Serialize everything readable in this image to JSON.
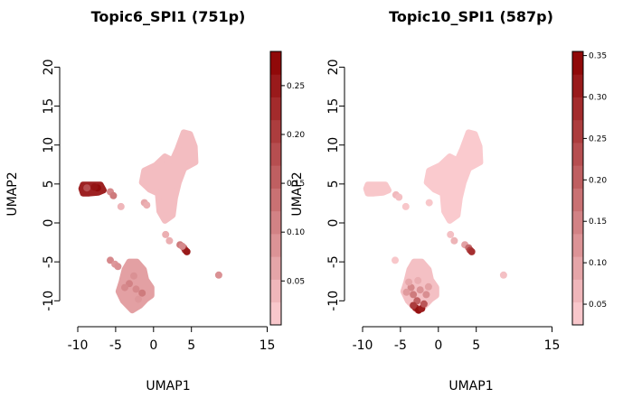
{
  "chart_data": [
    {
      "type": "scatter",
      "title": "Topic6_SPI1 (751p)",
      "xlabel": "UMAP1",
      "ylabel": "UMAP2",
      "xlim": [
        -10,
        15
      ],
      "ylim": [
        -10,
        20
      ],
      "xticks": [
        -10,
        -5,
        0,
        5,
        15
      ],
      "xtick_labels": [
        "-10",
        "-5",
        "0",
        "5",
        "15"
      ],
      "yticks": [
        -10,
        -5,
        0,
        5,
        10,
        15,
        20
      ],
      "ytick_labels": [
        "-10",
        "-5",
        "0",
        "5",
        "10",
        "15",
        "20"
      ],
      "colorbar": {
        "min": 0.005,
        "max": 0.285,
        "ticks": [
          0.05,
          0.1,
          0.15,
          0.2,
          0.25
        ],
        "tick_labels": [
          "0.05",
          "0.10",
          "0.15",
          "0.20",
          "0.25"
        ],
        "low_color": "#fdd0d4",
        "high_color": "#8b0000"
      },
      "clusters": [
        {
          "name": "upper-right",
          "mode": "fill",
          "value": 0.03,
          "poly": [
            [
              -1.5,
              5.2
            ],
            [
              -1.2,
              6.7
            ],
            [
              0.3,
              7.4
            ],
            [
              1.5,
              8.5
            ],
            [
              2.5,
              8.0
            ],
            [
              3.2,
              9.5
            ],
            [
              4.0,
              11.6
            ],
            [
              4.8,
              11.4
            ],
            [
              5.4,
              9.8
            ],
            [
              5.5,
              7.8
            ],
            [
              4.0,
              7.0
            ],
            [
              3.3,
              5.2
            ],
            [
              2.8,
              3.2
            ],
            [
              2.5,
              1.0
            ],
            [
              1.5,
              0.3
            ],
            [
              0.8,
              1.5
            ],
            [
              0.6,
              3.8
            ],
            [
              -0.5,
              4.3
            ]
          ]
        },
        {
          "name": "left-strip",
          "mode": "fill",
          "value": 0.24,
          "poly": [
            [
              -9.5,
              4.4
            ],
            [
              -9.3,
              4.9
            ],
            [
              -7.0,
              4.9
            ],
            [
              -6.6,
              4.2
            ],
            [
              -7.3,
              3.9
            ],
            [
              -8.5,
              3.8
            ],
            [
              -9.3,
              3.8
            ]
          ]
        },
        {
          "name": "lower-cluster",
          "mode": "fill",
          "value": 0.07,
          "poly": [
            [
              -4.2,
              -7.6
            ],
            [
              -4.6,
              -8.8
            ],
            [
              -4.0,
              -10.0
            ],
            [
              -2.8,
              -11.2
            ],
            [
              -1.8,
              -10.6
            ],
            [
              -1.0,
              -9.8
            ],
            [
              -0.3,
              -9.3
            ],
            [
              -0.3,
              -8.3
            ],
            [
              -1.0,
              -7.3
            ],
            [
              -1.3,
              -6.0
            ],
            [
              -2.2,
              -5.0
            ],
            [
              -3.2,
              -5.0
            ],
            [
              -3.8,
              -6.0
            ]
          ]
        },
        {
          "name": "lower-dark-spot",
          "mode": "none",
          "value": 0.09,
          "poly": []
        }
      ],
      "points": [
        [
          -7.4,
          4.5,
          0.27
        ],
        [
          -7.8,
          4.6,
          0.26
        ],
        [
          -8.8,
          4.5,
          0.18
        ],
        [
          -5.7,
          4.0,
          0.1
        ],
        [
          -5.3,
          3.5,
          0.12
        ],
        [
          -4.3,
          2.1,
          0.04
        ],
        [
          -1.2,
          2.6,
          0.06
        ],
        [
          -0.9,
          2.3,
          0.05
        ],
        [
          1.6,
          -1.5,
          0.05
        ],
        [
          2.1,
          -2.3,
          0.05
        ],
        [
          3.5,
          -2.8,
          0.12
        ],
        [
          4.0,
          -3.2,
          0.14
        ],
        [
          4.2,
          -3.5,
          0.22
        ],
        [
          4.4,
          -3.7,
          0.25
        ],
        [
          3.8,
          -3.0,
          0.1
        ],
        [
          -5.7,
          -4.8,
          0.1
        ],
        [
          -5.1,
          -5.3,
          0.08
        ],
        [
          -4.7,
          -5.6,
          0.09
        ],
        [
          8.6,
          -6.7,
          0.09
        ],
        [
          -3.2,
          -7.8,
          0.11
        ],
        [
          -2.3,
          -8.5,
          0.1
        ],
        [
          -1.5,
          -9.0,
          0.12
        ],
        [
          -3.8,
          -8.3,
          0.1
        ],
        [
          -2.6,
          -6.8,
          0.09
        ],
        [
          -2.0,
          -9.8,
          0.08
        ]
      ]
    },
    {
      "type": "scatter",
      "title": "Topic10_SPI1 (587p)",
      "xlabel": "UMAP1",
      "ylabel": "UMAP2",
      "xlim": [
        -10,
        15
      ],
      "ylim": [
        -10,
        20
      ],
      "xticks": [
        -10,
        -5,
        0,
        5,
        15
      ],
      "xtick_labels": [
        "-10",
        "-5",
        "0",
        "5",
        "15"
      ],
      "yticks": [
        -10,
        -5,
        0,
        5,
        10,
        15,
        20
      ],
      "ytick_labels": [
        "-10",
        "-5",
        "0",
        "5",
        "10",
        "15",
        "20"
      ],
      "colorbar": {
        "min": 0.025,
        "max": 0.355,
        "ticks": [
          0.05,
          0.1,
          0.15,
          0.2,
          0.25,
          0.3,
          0.35
        ],
        "tick_labels": [
          "0.05",
          "0.10",
          "0.15",
          "0.20",
          "0.25",
          "0.30",
          "0.35"
        ],
        "low_color": "#fdd0d4",
        "high_color": "#8b0000"
      },
      "clusters": [
        {
          "name": "upper-right",
          "mode": "fill",
          "value": 0.035,
          "poly": [
            [
              -1.5,
              5.2
            ],
            [
              -1.2,
              6.7
            ],
            [
              0.3,
              7.4
            ],
            [
              1.5,
              8.5
            ],
            [
              2.5,
              8.0
            ],
            [
              3.2,
              9.5
            ],
            [
              4.0,
              11.6
            ],
            [
              4.8,
              11.4
            ],
            [
              5.4,
              9.8
            ],
            [
              5.5,
              7.8
            ],
            [
              4.0,
              7.0
            ],
            [
              3.3,
              5.2
            ],
            [
              2.8,
              3.2
            ],
            [
              2.5,
              1.0
            ],
            [
              1.5,
              0.3
            ],
            [
              0.8,
              1.5
            ],
            [
              0.6,
              3.8
            ],
            [
              -0.5,
              4.3
            ]
          ]
        },
        {
          "name": "left-strip",
          "mode": "fill",
          "value": 0.04,
          "poly": [
            [
              -9.5,
              4.4
            ],
            [
              -9.3,
              4.9
            ],
            [
              -7.0,
              4.9
            ],
            [
              -6.6,
              4.2
            ],
            [
              -7.3,
              3.9
            ],
            [
              -8.5,
              3.8
            ],
            [
              -9.3,
              3.8
            ]
          ]
        },
        {
          "name": "lower-cluster",
          "mode": "fill",
          "value": 0.05,
          "poly": [
            [
              -4.2,
              -7.6
            ],
            [
              -4.6,
              -8.8
            ],
            [
              -4.0,
              -10.0
            ],
            [
              -2.8,
              -11.2
            ],
            [
              -1.8,
              -10.6
            ],
            [
              -1.0,
              -9.8
            ],
            [
              -0.3,
              -9.3
            ],
            [
              -0.3,
              -8.3
            ],
            [
              -1.0,
              -7.3
            ],
            [
              -1.3,
              -6.0
            ],
            [
              -2.2,
              -5.0
            ],
            [
              -3.2,
              -5.0
            ],
            [
              -3.8,
              -6.0
            ]
          ]
        }
      ],
      "points": [
        [
          -5.6,
          3.6,
          0.06
        ],
        [
          -5.2,
          3.3,
          0.05
        ],
        [
          -4.3,
          2.1,
          0.04
        ],
        [
          -1.2,
          2.6,
          0.04
        ],
        [
          1.6,
          -1.5,
          0.05
        ],
        [
          2.1,
          -2.3,
          0.07
        ],
        [
          3.5,
          -2.8,
          0.1
        ],
        [
          4.0,
          -3.2,
          0.18
        ],
        [
          4.2,
          -3.5,
          0.25
        ],
        [
          4.4,
          -3.7,
          0.28
        ],
        [
          -5.7,
          -4.8,
          0.04
        ],
        [
          8.6,
          -6.7,
          0.05
        ],
        [
          -3.6,
          -8.3,
          0.14
        ],
        [
          -3.3,
          -9.2,
          0.16
        ],
        [
          -2.8,
          -10.0,
          0.2
        ],
        [
          -2.4,
          -8.6,
          0.12
        ],
        [
          -1.6,
          -9.2,
          0.13
        ],
        [
          -3.0,
          -10.9,
          0.3
        ],
        [
          -2.6,
          -11.2,
          0.33
        ],
        [
          -2.2,
          -11.0,
          0.31
        ],
        [
          -3.3,
          -10.6,
          0.26
        ],
        [
          -1.9,
          -10.4,
          0.22
        ],
        [
          -3.9,
          -7.6,
          0.09
        ],
        [
          -4.2,
          -8.9,
          0.11
        ],
        [
          -2.7,
          -7.4,
          0.08
        ],
        [
          -1.3,
          -8.2,
          0.1
        ]
      ]
    }
  ]
}
